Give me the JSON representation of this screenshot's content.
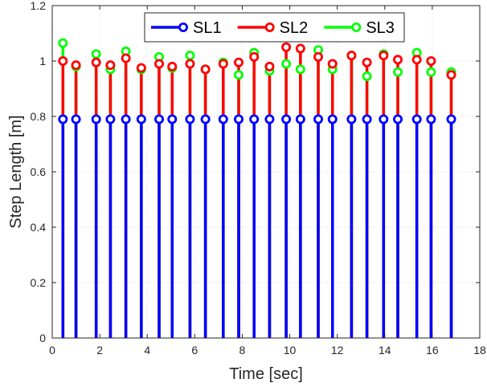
{
  "chart_data": {
    "type": "scatter",
    "subtype": "stem",
    "title": "",
    "xlabel": "Time [sec]",
    "ylabel": "Step Length [m]",
    "xlim": [
      0,
      18
    ],
    "ylim": [
      0,
      1.2
    ],
    "xticks": [
      0,
      2,
      4,
      6,
      8,
      10,
      12,
      14,
      16,
      18
    ],
    "yticks": [
      0,
      0.2,
      0.4,
      0.6,
      0.8,
      1,
      1.2
    ],
    "grid": true,
    "legend_position": "top",
    "x": [
      0.45,
      1.0,
      1.85,
      2.45,
      3.1,
      3.75,
      4.5,
      5.05,
      5.8,
      6.45,
      7.2,
      7.85,
      8.5,
      9.15,
      9.85,
      10.45,
      11.2,
      11.8,
      12.6,
      13.25,
      13.95,
      14.55,
      15.35,
      15.95,
      16.8
    ],
    "series": [
      {
        "name": "SL1",
        "color": "#0000ff",
        "values": [
          0.79,
          0.79,
          0.79,
          0.79,
          0.79,
          0.79,
          0.79,
          0.79,
          0.79,
          0.79,
          0.79,
          0.79,
          0.79,
          0.79,
          0.79,
          0.79,
          0.79,
          0.79,
          0.79,
          0.79,
          0.79,
          0.79,
          0.79,
          0.79,
          0.79
        ]
      },
      {
        "name": "SL2",
        "color": "#ff0000",
        "values": [
          1.0,
          0.985,
          0.995,
          0.985,
          1.01,
          0.975,
          0.99,
          0.98,
          0.99,
          0.97,
          0.99,
          0.995,
          1.015,
          0.98,
          1.05,
          1.045,
          1.015,
          0.99,
          1.02,
          0.995,
          1.02,
          1.005,
          1.005,
          1.0,
          0.95
        ]
      },
      {
        "name": "SL3",
        "color": "#00ff00",
        "values": [
          1.065,
          0.98,
          1.025,
          0.97,
          1.035,
          0.97,
          1.015,
          0.975,
          1.02,
          0.97,
          0.995,
          0.95,
          1.03,
          0.965,
          0.99,
          0.97,
          1.04,
          0.97,
          1.02,
          0.945,
          1.025,
          0.96,
          1.03,
          0.96,
          0.96
        ]
      }
    ]
  }
}
